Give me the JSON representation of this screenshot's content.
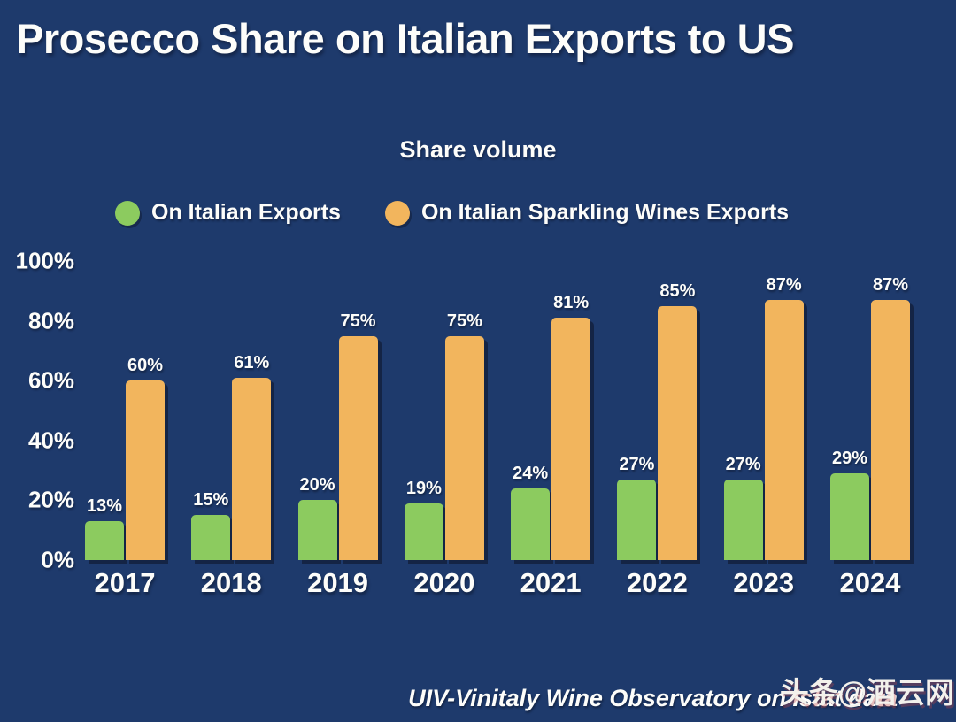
{
  "title": "Prosecco Share on Italian Exports to US",
  "subtitle": "Share volume",
  "legend": [
    {
      "label": "On Italian Exports",
      "color": "#8ccb5f"
    },
    {
      "label": "On Italian Sparkling Wines Exports",
      "color": "#f2b55d"
    }
  ],
  "footer": {
    "source": "UIV-Vinitaly Wine Observatory on Istat data",
    "watermark": "头条@酒云网"
  },
  "colors": {
    "background": "#1e3a6c",
    "text": "#fdfdfa",
    "series_green": "#8ccb5f",
    "series_orange": "#f2b55d"
  },
  "chart_data": {
    "type": "bar",
    "title": "Share volume",
    "categories": [
      "2017",
      "2018",
      "2019",
      "2020",
      "2021",
      "2022",
      "2023",
      "2024"
    ],
    "series": [
      {
        "name": "On Italian Exports",
        "color": "#8ccb5f",
        "values": [
          13,
          15,
          20,
          19,
          24,
          27,
          27,
          29
        ]
      },
      {
        "name": "On Italian Sparkling Wines Exports",
        "color": "#f2b55d",
        "values": [
          60,
          61,
          75,
          75,
          81,
          85,
          87,
          87
        ]
      }
    ],
    "value_suffix": "%",
    "xlabel": "",
    "ylabel": "",
    "ylim": [
      0,
      100
    ],
    "yticks": [
      0,
      20,
      40,
      60,
      80,
      100
    ],
    "ytick_suffix": "%",
    "grid": false,
    "legend_position": "top",
    "data_labels": true
  }
}
